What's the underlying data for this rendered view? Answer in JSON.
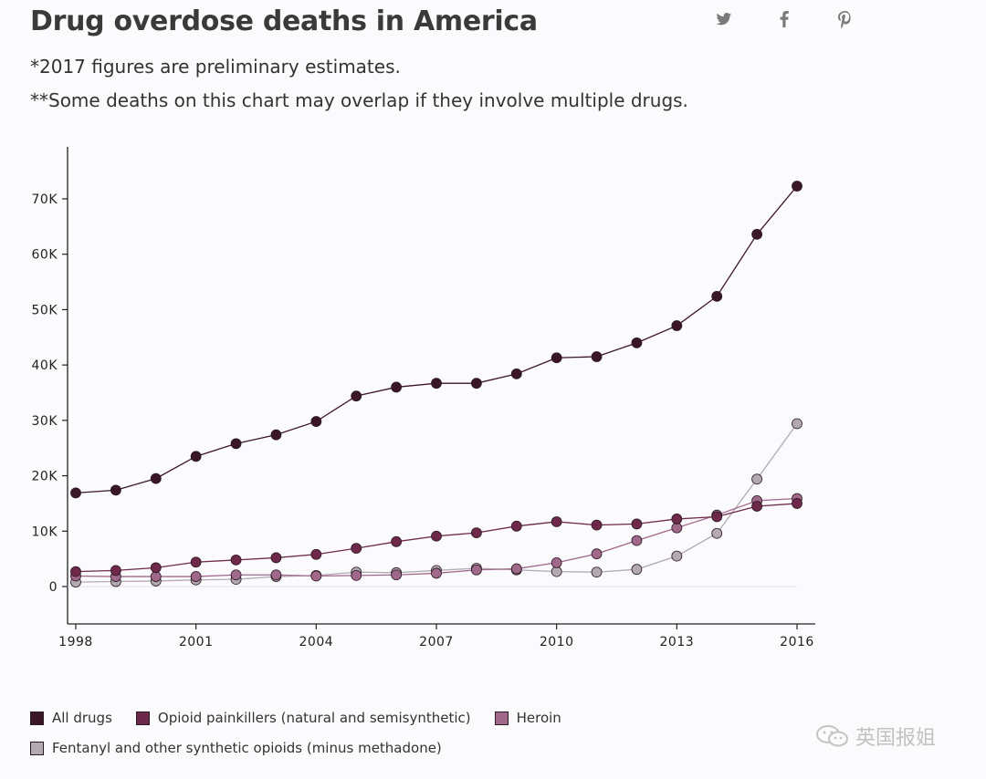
{
  "header": {
    "title": "Drug overdose deaths in America",
    "note_1": "*2017 figures are preliminary estimates.",
    "note_2": "**Some deaths on this chart may overlap if they involve multiple drugs."
  },
  "share": {
    "twitter_icon": "twitter-icon",
    "facebook_icon": "facebook-icon",
    "pinterest_icon": "pinterest-icon"
  },
  "watermark": {
    "text": "英国报姐",
    "icon": "wechat-icon"
  },
  "chart_data": {
    "type": "line",
    "title": "Drug overdose deaths in America",
    "xlabel": "",
    "ylabel": "",
    "x": [
      1998,
      1999,
      2000,
      2001,
      2002,
      2003,
      2004,
      2005,
      2006,
      2007,
      2008,
      2009,
      2010,
      2011,
      2012,
      2013,
      2014,
      2015,
      2016
    ],
    "xticks": [
      1998,
      2001,
      2004,
      2007,
      2010,
      2013,
      2016
    ],
    "xtick_labels": [
      "1998",
      "2001",
      "2004",
      "2007",
      "2010",
      "2013",
      "2016"
    ],
    "yticks": [
      0,
      10000,
      20000,
      30000,
      40000,
      50000,
      60000,
      70000
    ],
    "ytick_labels": [
      "0",
      "10K",
      "20K",
      "30K",
      "40K",
      "50K",
      "60K",
      "70K"
    ],
    "ylim": [
      -6000,
      80000
    ],
    "xlim": [
      1998,
      2016
    ],
    "grid": false,
    "legend_position": "bottom-left",
    "series": [
      {
        "name": "All drugs",
        "color": "#3b1628",
        "values": [
          16900,
          17400,
          19500,
          23500,
          25800,
          27400,
          29800,
          34400,
          36000,
          36700,
          36700,
          38400,
          41300,
          41500,
          44000,
          47100,
          52400,
          63600,
          72300
        ]
      },
      {
        "name": "Opioid painkillers (natural and semisynthetic)",
        "color": "#6e2849",
        "values": [
          2700,
          2900,
          3400,
          4400,
          4800,
          5200,
          5800,
          6900,
          8100,
          9100,
          9700,
          10900,
          11700,
          11100,
          11300,
          12200,
          12600,
          14500,
          15000
        ]
      },
      {
        "name": "Heroin",
        "color": "#a0688b",
        "values": [
          1900,
          1800,
          1800,
          1800,
          2100,
          2100,
          1900,
          2000,
          2100,
          2400,
          3000,
          3200,
          4300,
          5900,
          8300,
          10600,
          12900,
          15500,
          15900
        ]
      },
      {
        "name": "Fentanyl and other synthetic opioids (minus methadone)",
        "color": "#b3a9b0",
        "values": [
          800,
          900,
          1000,
          1200,
          1300,
          1800,
          2000,
          2600,
          2500,
          2900,
          3300,
          3000,
          2700,
          2600,
          3100,
          5500,
          9600,
          19400,
          29400
        ]
      }
    ]
  }
}
